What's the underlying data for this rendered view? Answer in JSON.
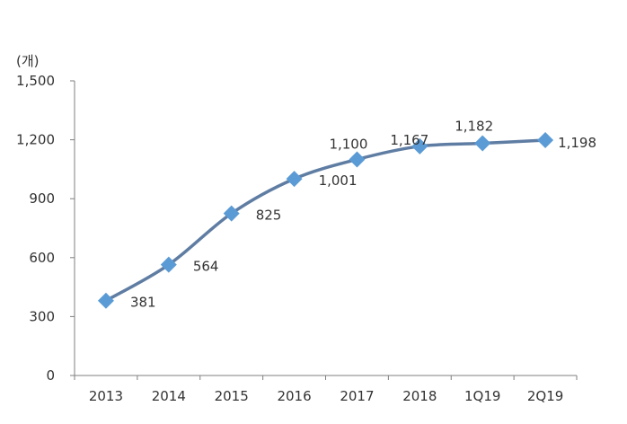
{
  "chart_data": {
    "type": "line",
    "unit_label": "(개)",
    "categories": [
      "2013",
      "2014",
      "2015",
      "2016",
      "2017",
      "2018",
      "1Q19",
      "2Q19"
    ],
    "values": [
      381,
      564,
      825,
      1001,
      1100,
      1167,
      1182,
      1198
    ],
    "value_labels": [
      "381",
      "564",
      "825",
      "1,001",
      "1,100",
      "1,167",
      "1,182",
      "1,198"
    ],
    "y_ticks": [
      "0",
      "300",
      "600",
      "900",
      "1,200",
      "1,500"
    ],
    "ylim": [
      0,
      1500
    ],
    "grid": false,
    "legend": "none",
    "colors": {
      "line": "#5f7da3",
      "marker": "#5b9bd5",
      "axis": "#7f7f7f"
    }
  }
}
